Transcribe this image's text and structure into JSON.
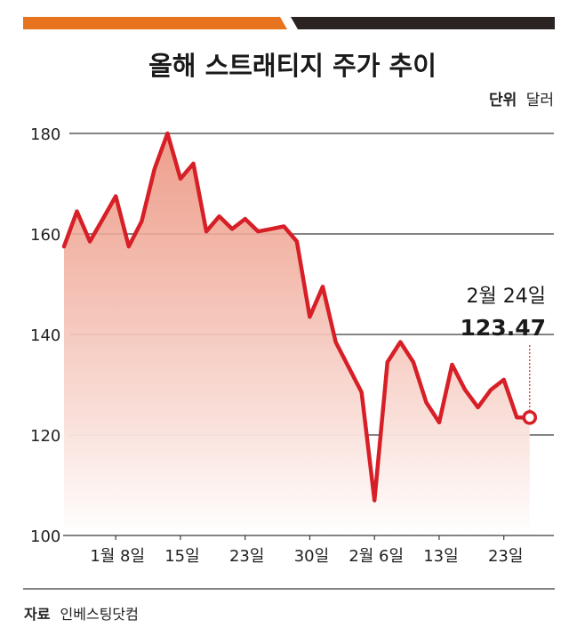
{
  "header": {
    "title": "올해 스트래티지 주가 추이",
    "unit_label": "단위",
    "unit_value": "달러",
    "colors": {
      "bar_left": "#e8731e",
      "bar_right": "#2b2222"
    }
  },
  "chart_data": {
    "type": "area",
    "title": "올해 스트래티지 주가 추이",
    "unit": "달러",
    "y_ticks": [
      "180",
      "160",
      "140",
      "120",
      "100"
    ],
    "y_tick_values": [
      180,
      160,
      140,
      120,
      100
    ],
    "ylim": [
      100,
      180
    ],
    "x_tick_labels": [
      "1월 8일",
      "15일",
      "23일",
      "30일",
      "2월 6일",
      "13일",
      "23일"
    ],
    "x_tick_index": [
      4,
      9,
      14,
      19,
      24,
      29,
      34
    ],
    "grid": true,
    "series": [
      {
        "values": [
          157.5,
          164.5,
          158.5,
          163,
          167.5,
          157.5,
          162.5,
          173,
          180,
          171,
          174,
          160.5,
          163.5,
          161,
          163,
          160.5,
          161,
          161.5,
          158.5,
          143.5,
          149.5,
          138.5,
          133.5,
          128.5,
          107,
          134.5,
          138.5,
          134.5,
          126.5,
          122.5,
          134,
          129,
          125.5,
          129,
          131,
          123.5,
          123.47
        ]
      }
    ],
    "annotation": {
      "date": "2월 24일",
      "value": "123.47"
    },
    "colors": {
      "line": "#d71f27",
      "fill_top": "#eb8e78",
      "fill_bottom": "#ffffff",
      "grid": "#3a3a3a",
      "marker_fill": "#ffffff"
    }
  },
  "footer": {
    "source_label": "자료",
    "source_value": "인베스팅닷컴"
  }
}
